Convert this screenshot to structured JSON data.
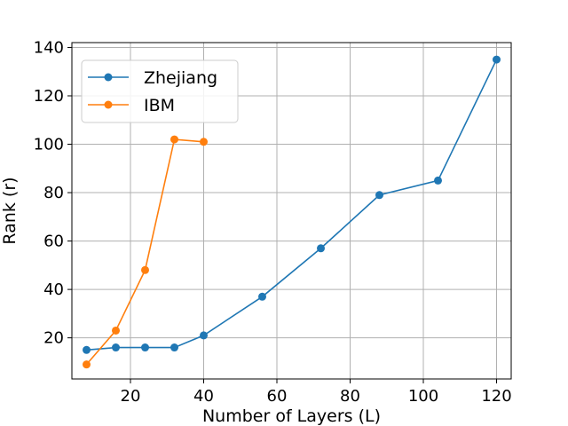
{
  "chart_data": {
    "type": "line",
    "title": "",
    "xlabel": "Number of Layers (L)",
    "ylabel": "Rank (r)",
    "xlim": [
      4,
      124
    ],
    "ylim": [
      3,
      142
    ],
    "xticks": [
      20,
      40,
      60,
      80,
      100,
      120
    ],
    "yticks": [
      20,
      40,
      60,
      80,
      100,
      120,
      140
    ],
    "grid": true,
    "legend_position": "top-left",
    "series": [
      {
        "name": "Zhejiang",
        "color": "#1f77b4",
        "marker": "circle",
        "x": [
          8,
          16,
          24,
          32,
          40,
          56,
          72,
          88,
          104,
          120
        ],
        "y": [
          15,
          16,
          16,
          16,
          21,
          37,
          57,
          79,
          85,
          135
        ]
      },
      {
        "name": "IBM",
        "color": "#ff7f0e",
        "marker": "circle",
        "x": [
          8,
          16,
          24,
          32,
          40
        ],
        "y": [
          9,
          23,
          48,
          102,
          101
        ]
      }
    ]
  }
}
